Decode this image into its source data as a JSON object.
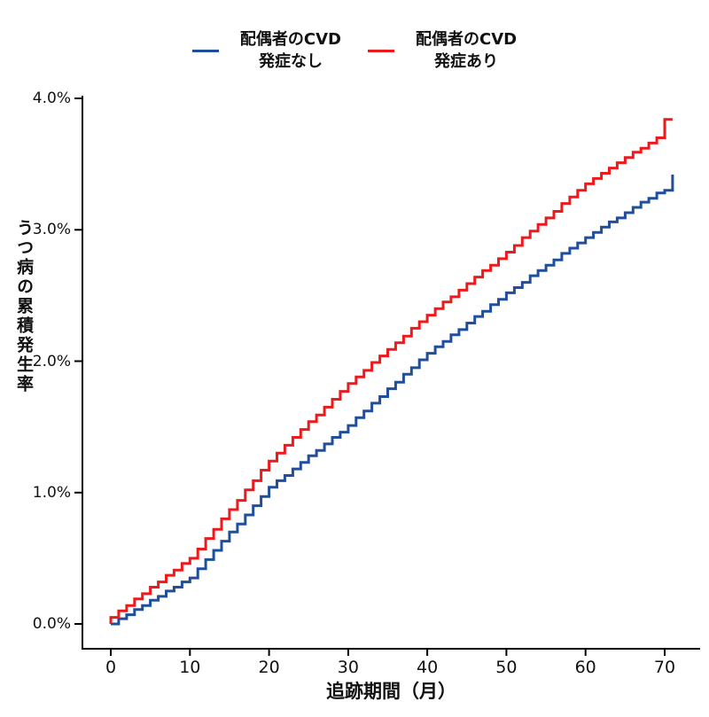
{
  "legend": {
    "items": [
      {
        "id": "no-cvd",
        "label_line1": "配偶者のCVD",
        "label_line2": "発症なし",
        "color": "#1f4e9c"
      },
      {
        "id": "cvd",
        "label_line1": "配偶者のCVD",
        "label_line2": "発症あり",
        "color": "#ec1a1d"
      }
    ]
  },
  "chart_data": {
    "type": "line",
    "subtype": "step",
    "title": "",
    "xlabel": "追跡期間（月）",
    "ylabel": "うつ病の累積発生率",
    "xlim": [
      0,
      71
    ],
    "ylim": [
      0,
      4
    ],
    "grid": false,
    "legend_position": "top",
    "x_ticks": [
      0,
      10,
      20,
      30,
      40,
      50,
      60,
      70
    ],
    "y_tick_values": [
      0,
      1,
      2,
      3,
      4
    ],
    "y_ticks": [
      "0.0%",
      "1.0%",
      "2.0%",
      "3.0%",
      "4.0%"
    ],
    "x_unit": "month",
    "y_unit": "percent",
    "months": [
      0,
      1,
      2,
      3,
      4,
      5,
      6,
      7,
      8,
      9,
      10,
      11,
      12,
      13,
      14,
      15,
      16,
      17,
      18,
      19,
      20,
      21,
      22,
      23,
      24,
      25,
      26,
      27,
      28,
      29,
      30,
      31,
      32,
      33,
      34,
      35,
      36,
      37,
      38,
      39,
      40,
      41,
      42,
      43,
      44,
      45,
      46,
      47,
      48,
      49,
      50,
      51,
      52,
      53,
      54,
      55,
      56,
      57,
      58,
      59,
      60,
      61,
      62,
      63,
      64,
      65,
      66,
      67,
      68,
      69,
      70,
      71
    ],
    "series": [
      {
        "id": "no-cvd",
        "name": "配偶者のCVD 発症なし",
        "color": "#1f4e9c",
        "values": [
          0.0,
          0.04,
          0.07,
          0.11,
          0.14,
          0.18,
          0.21,
          0.25,
          0.28,
          0.32,
          0.35,
          0.42,
          0.49,
          0.56,
          0.63,
          0.7,
          0.76,
          0.83,
          0.9,
          0.97,
          1.04,
          1.09,
          1.13,
          1.18,
          1.23,
          1.28,
          1.32,
          1.37,
          1.42,
          1.46,
          1.51,
          1.57,
          1.62,
          1.68,
          1.73,
          1.79,
          1.84,
          1.9,
          1.95,
          2.01,
          2.06,
          2.11,
          2.15,
          2.2,
          2.24,
          2.29,
          2.34,
          2.38,
          2.43,
          2.47,
          2.52,
          2.56,
          2.6,
          2.65,
          2.69,
          2.73,
          2.77,
          2.82,
          2.86,
          2.9,
          2.94,
          2.98,
          3.02,
          3.06,
          3.09,
          3.13,
          3.17,
          3.21,
          3.24,
          3.28,
          3.3,
          3.42
        ]
      },
      {
        "id": "cvd",
        "name": "配偶者のCVD 発症あり",
        "color": "#ec1a1d",
        "values": [
          0.05,
          0.1,
          0.14,
          0.19,
          0.23,
          0.28,
          0.32,
          0.37,
          0.41,
          0.46,
          0.5,
          0.57,
          0.65,
          0.72,
          0.8,
          0.87,
          0.94,
          1.02,
          1.09,
          1.17,
          1.24,
          1.3,
          1.36,
          1.42,
          1.48,
          1.54,
          1.59,
          1.65,
          1.71,
          1.77,
          1.83,
          1.88,
          1.93,
          1.99,
          2.04,
          2.09,
          2.14,
          2.19,
          2.25,
          2.3,
          2.35,
          2.4,
          2.45,
          2.49,
          2.54,
          2.59,
          2.64,
          2.69,
          2.73,
          2.78,
          2.83,
          2.88,
          2.94,
          2.99,
          3.04,
          3.09,
          3.14,
          3.2,
          3.25,
          3.3,
          3.35,
          3.39,
          3.43,
          3.47,
          3.51,
          3.55,
          3.59,
          3.62,
          3.66,
          3.7,
          3.84,
          3.84
        ]
      }
    ]
  }
}
